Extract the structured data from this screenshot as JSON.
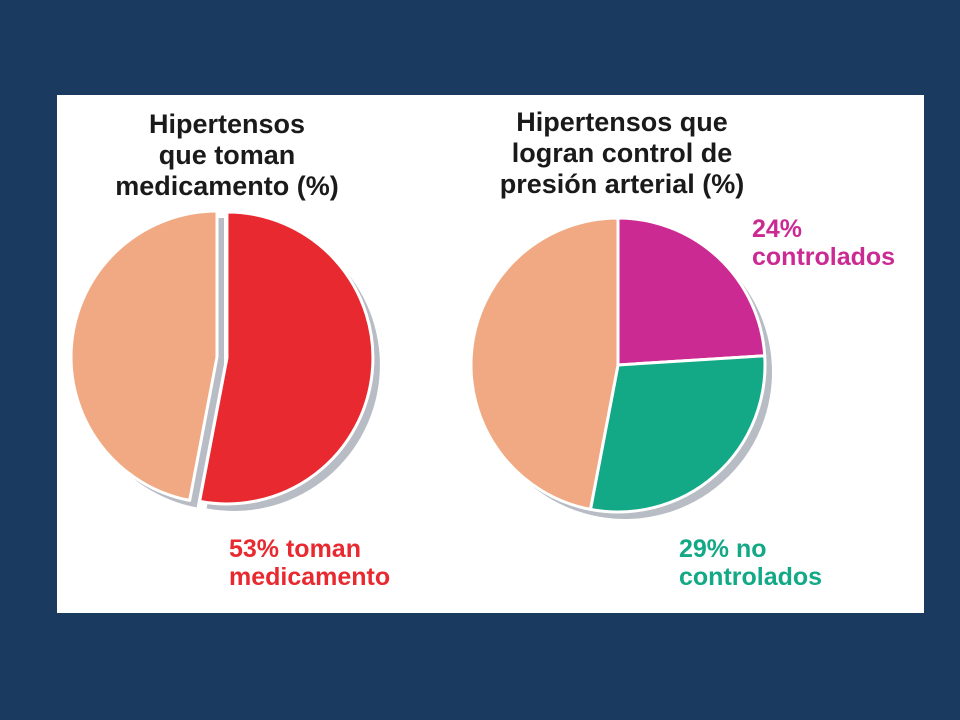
{
  "colors": {
    "background": "#1b3a5f",
    "panel": "#ffffff",
    "remainder_slice": "#f0a982",
    "shadow": "#b8bcc4",
    "toman_medicamento": "#e8292f",
    "controlados": "#cc2a93",
    "no_controlados": "#13a886"
  },
  "chart_data": [
    {
      "type": "pie",
      "title_lines": [
        "Hipertensos",
        "que toman",
        "medicamento (%)"
      ],
      "slices": [
        {
          "value": 53,
          "color_key": "toman_medicamento",
          "label_lines": [
            "53% toman",
            "medicamento"
          ],
          "exploded": true
        },
        {
          "value": 47,
          "color_key": "remainder_slice",
          "label_lines": []
        }
      ]
    },
    {
      "type": "pie",
      "title_lines": [
        "Hipertensos que",
        "logran control de",
        "presión arterial (%)"
      ],
      "slices": [
        {
          "value": 24,
          "color_key": "controlados",
          "label_lines": [
            "24%",
            "controlados"
          ],
          "exploded": false
        },
        {
          "value": 29,
          "color_key": "no_controlados",
          "label_lines": [
            "29% no",
            "controlados"
          ],
          "exploded": false
        },
        {
          "value": 47,
          "color_key": "remainder_slice",
          "label_lines": []
        }
      ]
    }
  ]
}
